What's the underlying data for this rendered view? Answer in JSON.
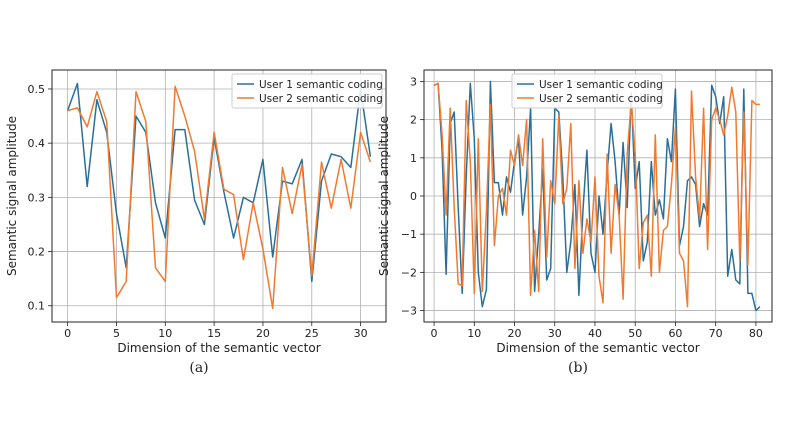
{
  "chart_data": [
    {
      "type": "line",
      "panel": "a",
      "caption": "(a)",
      "title": "",
      "xlabel": "Dimension of the semantic vector",
      "ylabel": "Semantic signal amplitude",
      "xlim": [
        -1.6,
        32.6
      ],
      "ylim": [
        0.07,
        0.535
      ],
      "xticks": [
        0,
        5,
        10,
        15,
        20,
        25,
        30
      ],
      "yticks": [
        0.1,
        0.2,
        0.3,
        0.4,
        0.5
      ],
      "ytick_labels": [
        "0.1",
        "0.2",
        "0.3",
        "0.4",
        "0.5"
      ],
      "grid": true,
      "legend_position": "top-right",
      "x": [
        0,
        1,
        2,
        3,
        4,
        5,
        6,
        7,
        8,
        9,
        10,
        11,
        12,
        13,
        14,
        15,
        16,
        17,
        18,
        19,
        20,
        21,
        22,
        23,
        24,
        25,
        26,
        27,
        28,
        29,
        30,
        31
      ],
      "series": [
        {
          "name": "User 1 semantic coding",
          "color": "#2a6f9b",
          "values": [
            0.46,
            0.51,
            0.32,
            0.48,
            0.42,
            0.27,
            0.17,
            0.45,
            0.42,
            0.29,
            0.225,
            0.425,
            0.425,
            0.295,
            0.25,
            0.41,
            0.31,
            0.225,
            0.3,
            0.29,
            0.37,
            0.19,
            0.33,
            0.325,
            0.37,
            0.145,
            0.33,
            0.38,
            0.375,
            0.355,
            0.5,
            0.375
          ]
        },
        {
          "name": "User 2 semantic coding",
          "color": "#f07a2e",
          "values": [
            0.46,
            0.465,
            0.43,
            0.495,
            0.44,
            0.115,
            0.145,
            0.495,
            0.44,
            0.17,
            0.145,
            0.505,
            0.45,
            0.385,
            0.26,
            0.42,
            0.315,
            0.305,
            0.185,
            0.29,
            0.205,
            0.095,
            0.355,
            0.27,
            0.36,
            0.155,
            0.365,
            0.28,
            0.37,
            0.28,
            0.42,
            0.365
          ]
        }
      ]
    },
    {
      "type": "line",
      "panel": "b",
      "caption": "(b)",
      "title": "",
      "xlabel": "Dimension of the semantic vector",
      "ylabel": "Semantic signal amplitude",
      "xlim": [
        -2.5,
        84
      ],
      "ylim": [
        -3.3,
        3.3
      ],
      "xticks": [
        0,
        10,
        20,
        30,
        40,
        50,
        60,
        70,
        80
      ],
      "yticks": [
        -3,
        -2,
        -1,
        0,
        1,
        2,
        3
      ],
      "ytick_labels": [
        "−3",
        "−2",
        "−1",
        "0",
        "1",
        "2",
        "3"
      ],
      "grid": true,
      "legend_position": "top-left",
      "x": [
        0,
        1,
        2,
        3,
        4,
        5,
        6,
        7,
        8,
        9,
        10,
        11,
        12,
        13,
        14,
        15,
        16,
        17,
        18,
        19,
        20,
        21,
        22,
        23,
        24,
        25,
        26,
        27,
        28,
        29,
        30,
        31,
        32,
        33,
        34,
        35,
        36,
        37,
        38,
        39,
        40,
        41,
        42,
        43,
        44,
        45,
        46,
        47,
        48,
        49,
        50,
        51,
        52,
        53,
        54,
        55,
        56,
        57,
        58,
        59,
        60,
        61,
        62,
        63,
        64,
        65,
        66,
        67,
        68,
        69,
        70,
        71,
        72,
        73,
        74,
        75,
        76,
        77,
        78,
        79,
        80,
        81
      ],
      "series": [
        {
          "name": "User 1 semantic coding",
          "color": "#2a6f9b",
          "values": [
            2.9,
            2.95,
            1.2,
            -2.05,
            1.9,
            2.2,
            -0.3,
            -2.55,
            0.5,
            2.95,
            1.5,
            -2.0,
            -2.9,
            -2.45,
            3.0,
            0.35,
            0.35,
            -0.5,
            0.5,
            0.1,
            0.9,
            1.5,
            -0.5,
            0.5,
            2.3,
            -2.5,
            -1.0,
            0.7,
            -2.2,
            -1.9,
            2.3,
            2.2,
            0.5,
            -2.0,
            -1.2,
            0.3,
            -2.6,
            -0.4,
            1.2,
            -1.5,
            -2.0,
            0.0,
            -1.0,
            0.6,
            1.9,
            0.9,
            -0.5,
            1.4,
            -0.3,
            2.7,
            0.2,
            0.9,
            -1.7,
            -1.2,
            0.9,
            -0.5,
            -0.1,
            -0.6,
            1.5,
            0.9,
            2.8,
            -1.3,
            -0.8,
            0.4,
            0.5,
            0.3,
            -0.8,
            -0.2,
            -0.5,
            2.9,
            2.6,
            1.9,
            2.6,
            -2.1,
            -1.4,
            -2.2,
            -2.3,
            2.8,
            -2.55,
            -2.55,
            -3.0,
            -2.9
          ]
        },
        {
          "name": "User 2 semantic coding",
          "color": "#f07a2e",
          "values": [
            2.9,
            2.95,
            1.6,
            -0.5,
            2.3,
            -0.3,
            -2.3,
            -2.35,
            2.5,
            0.9,
            -2.55,
            1.5,
            -2.5,
            -0.4,
            2.4,
            -1.3,
            0.0,
            0.2,
            -0.5,
            1.2,
            0.8,
            1.6,
            0.8,
            2.0,
            -2.6,
            -0.9,
            -2.5,
            1.5,
            -1.6,
            0.4,
            -0.2,
            2.1,
            -0.2,
            0.2,
            1.9,
            -1.9,
            0.4,
            -1.5,
            -0.6,
            -1.2,
            0.5,
            -2.1,
            -2.8,
            1.1,
            -1.5,
            0.3,
            -0.5,
            -2.7,
            1.1,
            2.45,
            1.1,
            -1.9,
            -0.7,
            -0.5,
            -2.1,
            1.6,
            -2.0,
            -0.9,
            -0.8,
            0.3,
            1.8,
            -1.5,
            -1.7,
            -2.9,
            2.75,
            0.5,
            -0.6,
            2.3,
            -1.4,
            2.0,
            2.3,
            2.0,
            1.6,
            2.1,
            2.85,
            2.2,
            -1.7,
            2.2,
            -1.8,
            2.5,
            2.4,
            2.4
          ]
        }
      ]
    }
  ]
}
